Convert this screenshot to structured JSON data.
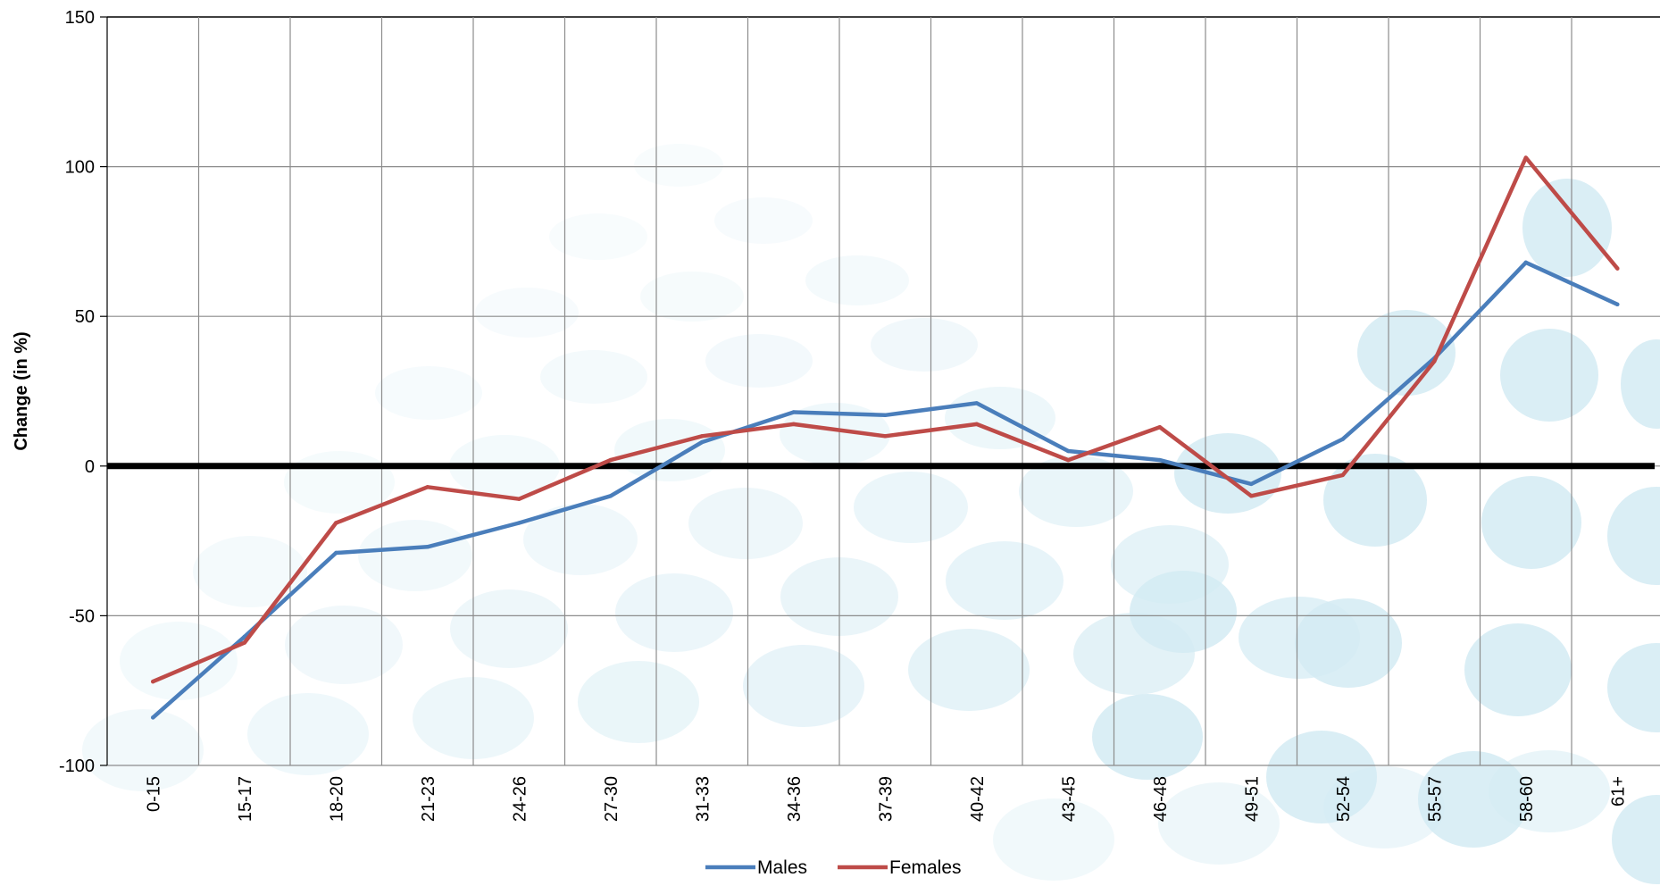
{
  "chart_data": {
    "type": "line",
    "title": "",
    "xlabel": "",
    "ylabel": "Change (in %)",
    "ylim": [
      -100,
      150
    ],
    "yticks": [
      150,
      100,
      50,
      0,
      -50,
      -100
    ],
    "grid": true,
    "legend_position": "bottom",
    "categories": [
      "0-15",
      "15-17",
      "18-20",
      "21-23",
      "24-26",
      "27-30",
      "31-33",
      "34-36",
      "37-39",
      "40-42",
      "43-45",
      "46-48",
      "49-51",
      "52-54",
      "55-57",
      "58-60",
      "61+"
    ],
    "series": [
      {
        "name": "Males",
        "color": "#4a7ebb",
        "values": [
          -84,
          -57,
          -29,
          -27,
          -19,
          -10,
          8,
          18,
          17,
          21,
          5,
          2,
          -6,
          9,
          36,
          68,
          54
        ]
      },
      {
        "name": "Females",
        "color": "#be4b48",
        "values": [
          -72,
          -59,
          -19,
          -7,
          -11,
          2,
          10,
          14,
          10,
          14,
          2,
          13,
          -10,
          -3,
          35,
          103,
          66
        ]
      }
    ]
  },
  "colors": {
    "zero_line": "#000000",
    "grid": "#8c8c8c",
    "background_bubbles": "#d3ebf3"
  }
}
